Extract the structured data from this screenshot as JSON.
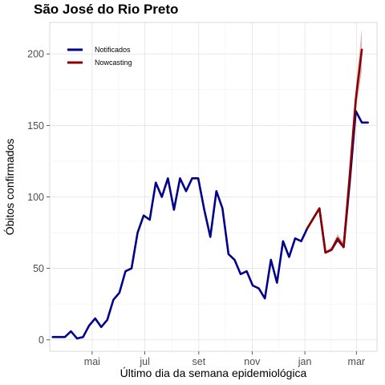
{
  "chart_data": {
    "type": "line",
    "title": "São José do Rio Preto",
    "xlabel": "Último dia da semana epidemiológica",
    "ylabel": "Óbitos confirmados",
    "x_ticks": [
      {
        "label": "mai",
        "week": 6.5
      },
      {
        "label": "jul",
        "week": 15.2
      },
      {
        "label": "set",
        "week": 24.1
      },
      {
        "label": "nov",
        "week": 32.9
      },
      {
        "label": "jan",
        "week": 41.6
      },
      {
        "label": "mar",
        "week": 50.1
      }
    ],
    "y_ticks": [
      0,
      50,
      100,
      150,
      200
    ],
    "xlim": [
      -0.5,
      53.5
    ],
    "ylim": [
      -8,
      222
    ],
    "grid": true,
    "legend_position": "top-left",
    "series": [
      {
        "name": "Notificados",
        "color": "#00008B",
        "x": [
          0,
          1,
          2,
          3,
          4,
          5,
          6,
          7,
          8,
          9,
          10,
          11,
          12,
          13,
          14,
          15,
          16,
          17,
          18,
          19,
          20,
          21,
          22,
          23,
          24,
          25,
          26,
          27,
          28,
          29,
          30,
          31,
          32,
          33,
          34,
          35,
          36,
          37,
          38,
          39,
          40,
          41,
          42,
          43,
          44,
          45,
          46,
          47,
          48,
          49,
          50,
          51,
          52
        ],
        "values": [
          2,
          2,
          2,
          6,
          1,
          2,
          10,
          15,
          9,
          14,
          28,
          33,
          48,
          50,
          75,
          87,
          84,
          110,
          100,
          113,
          91,
          113,
          104,
          113,
          113,
          91,
          72,
          104,
          92,
          60,
          56,
          46,
          48,
          38,
          36,
          29,
          56,
          40,
          69,
          58,
          71,
          69,
          78,
          85,
          92,
          61,
          63,
          70,
          65,
          110,
          160,
          152,
          152
        ]
      },
      {
        "name": "Nowcasting",
        "color": "#8B0000",
        "x": [
          42,
          43,
          44,
          45,
          46,
          47,
          48,
          49,
          50,
          51
        ],
        "values": [
          78,
          85,
          92,
          61,
          63,
          71,
          65,
          115,
          168,
          203
        ],
        "band_lower": [
          78,
          85,
          92,
          61,
          62,
          69,
          63,
          108,
          160,
          188
        ],
        "band_upper": [
          78,
          85,
          92,
          62,
          65,
          74,
          68,
          122,
          176,
          218
        ]
      }
    ]
  }
}
